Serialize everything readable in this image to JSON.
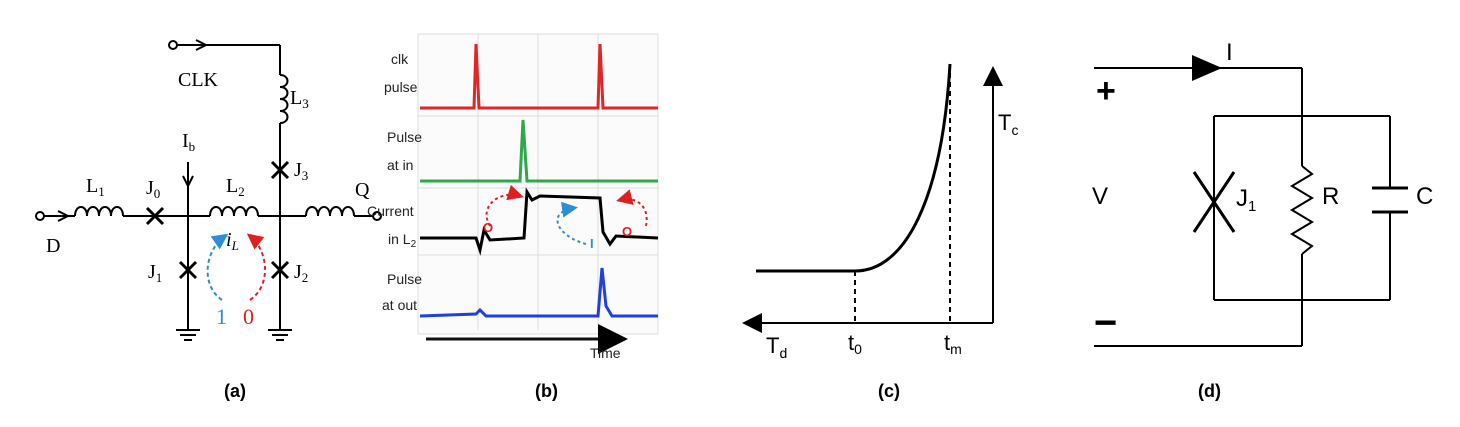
{
  "captions": {
    "a": "(a)",
    "b": "(b)",
    "c": "(c)",
    "d": "(d)"
  },
  "panel_a": {
    "clk": "CLK",
    "l3": "L",
    "l3_sub": "3",
    "ib": "I",
    "ib_sub": "b",
    "l1": "L",
    "l1_sub": "1",
    "j0": "J",
    "j0_sub": "0",
    "l2": "L",
    "l2_sub": "2",
    "j3": "J",
    "j3_sub": "3",
    "q": "Q",
    "d": "D",
    "il": "i",
    "il_sub": "L",
    "j1": "J",
    "j1_sub": "1",
    "j2": "J",
    "j2_sub": "2",
    "one": "1",
    "zero": "0",
    "colors": {
      "one": "#2d8ed6",
      "zero": "#e02020"
    }
  },
  "panel_b": {
    "labels": [
      "clk",
      "pulse",
      "Pulse",
      "at in",
      "Current",
      "in L",
      "2",
      "Pulse",
      "at out"
    ],
    "time": "Time",
    "o1": "O",
    "i1": "I",
    "o2": "O",
    "colors": {
      "clk": "#e02626",
      "in": "#2fa84a",
      "current": "#000000",
      "out": "#1f3fe0",
      "arrow_red": "#e02020",
      "arrow_blue": "#2d8ed6"
    }
  },
  "panel_c": {
    "tc": "T",
    "tc_sub": "c",
    "td": "T",
    "td_sub": "d",
    "t0": "t",
    "t0_sub": "0",
    "tm": "t",
    "tm_sub": "m"
  },
  "panel_d": {
    "plus": "+",
    "minus": "−",
    "i": "I",
    "v": "V",
    "j1": "J",
    "j1_sub": "1",
    "r": "R",
    "c": "C"
  }
}
